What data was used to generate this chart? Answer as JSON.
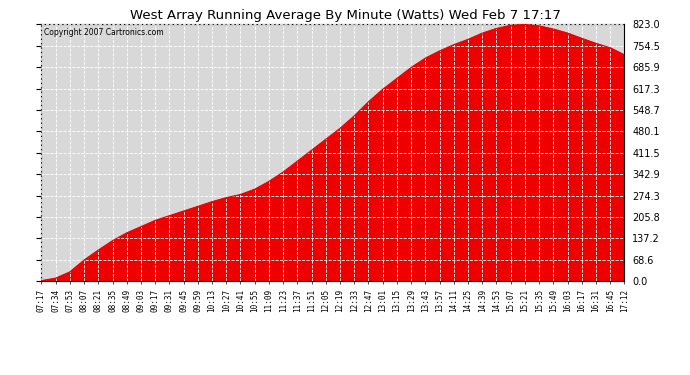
{
  "title": "West Array Running Average By Minute (Watts) Wed Feb 7 17:17",
  "copyright": "Copyright 2007 Cartronics.com",
  "fill_color": "#EE0000",
  "background_color": "#ffffff",
  "plot_background": "#d8d8d8",
  "grid_color": "white",
  "ytick_values": [
    0.0,
    68.6,
    137.2,
    205.8,
    274.3,
    342.9,
    411.5,
    480.1,
    548.7,
    617.3,
    685.9,
    754.5,
    823.0
  ],
  "ytick_labels": [
    "0.0",
    "68.6",
    "137.2",
    "205.8",
    "274.3",
    "342.9",
    "411.5",
    "480.1",
    "548.7",
    "617.3",
    "685.9",
    "754.5",
    "823.0"
  ],
  "ymax": 823.0,
  "ymin": 0.0,
  "xtick_labels": [
    "07:17",
    "07:34",
    "07:53",
    "08:07",
    "08:21",
    "08:35",
    "08:49",
    "09:03",
    "09:17",
    "09:31",
    "09:45",
    "09:59",
    "10:13",
    "10:27",
    "10:41",
    "10:55",
    "11:09",
    "11:23",
    "11:37",
    "11:51",
    "12:05",
    "12:19",
    "12:33",
    "12:47",
    "13:01",
    "13:15",
    "13:29",
    "13:43",
    "13:57",
    "14:11",
    "14:25",
    "14:39",
    "14:53",
    "15:07",
    "15:21",
    "15:35",
    "15:49",
    "16:03",
    "16:17",
    "16:31",
    "16:45",
    "17:12"
  ],
  "series_y": [
    2,
    10,
    30,
    68,
    100,
    130,
    155,
    175,
    195,
    210,
    225,
    240,
    255,
    268,
    278,
    295,
    320,
    350,
    385,
    420,
    455,
    490,
    530,
    575,
    615,
    650,
    685,
    715,
    738,
    758,
    775,
    795,
    810,
    820,
    823,
    818,
    808,
    795,
    778,
    762,
    748,
    725
  ]
}
